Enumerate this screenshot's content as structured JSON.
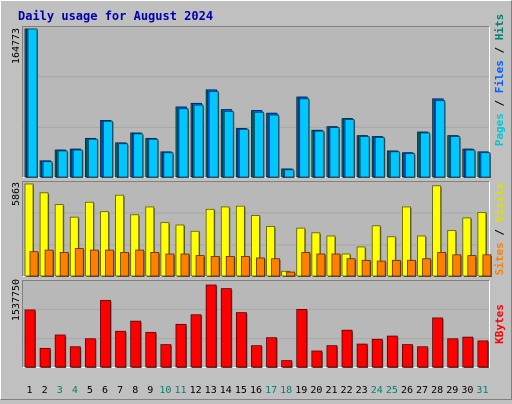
{
  "chart_data": [
    {
      "type": "bar",
      "title": "Daily usage for August 2024",
      "categories": [
        "1",
        "2",
        "3",
        "4",
        "5",
        "6",
        "7",
        "8",
        "9",
        "10",
        "11",
        "12",
        "13",
        "14",
        "15",
        "16",
        "17",
        "18",
        "19",
        "20",
        "21",
        "22",
        "23",
        "24",
        "25",
        "26",
        "27",
        "28",
        "29",
        "30",
        "31"
      ],
      "weekend_days": [
        "3",
        "4",
        "10",
        "11",
        "17",
        "18",
        "24",
        "25",
        "31"
      ],
      "ymax_label": "164773",
      "ylim": [
        0,
        164773
      ],
      "legend": [
        "Pages",
        "Files",
        "Hits"
      ],
      "legend_colors": [
        "#00c8d8",
        "#0060ff",
        "#00806f"
      ],
      "series": [
        {
          "name": "Hits",
          "color": "#00806f",
          "values": [
            164773,
            18000,
            30000,
            31000,
            43000,
            63000,
            38000,
            49000,
            43000,
            28000,
            78000,
            82000,
            97000,
            75000,
            54000,
            74000,
            71000,
            9000,
            89000,
            52000,
            56000,
            65000,
            46000,
            45000,
            29000,
            27000,
            50000,
            87000,
            46000,
            31000,
            28000
          ]
        },
        {
          "name": "Files",
          "color": "#0060ff",
          "values": [
            164773,
            18000,
            30000,
            31000,
            43000,
            63000,
            38000,
            49000,
            43000,
            28000,
            78000,
            82000,
            97000,
            75000,
            54000,
            74000,
            71000,
            9000,
            89000,
            52000,
            56000,
            65000,
            46000,
            45000,
            29000,
            27000,
            50000,
            87000,
            46000,
            31000,
            28000
          ]
        },
        {
          "name": "Pages",
          "color": "#00c8ff",
          "values": [
            164773,
            17000,
            29000,
            30000,
            42000,
            62000,
            37000,
            48000,
            42000,
            27000,
            76000,
            80000,
            95000,
            73000,
            53000,
            72000,
            69000,
            8000,
            87000,
            51000,
            55000,
            64000,
            45000,
            44000,
            28000,
            26000,
            49000,
            85000,
            45000,
            30000,
            27000
          ]
        }
      ]
    },
    {
      "type": "bar",
      "categories": [
        "1",
        "2",
        "3",
        "4",
        "5",
        "6",
        "7",
        "8",
        "9",
        "10",
        "11",
        "12",
        "13",
        "14",
        "15",
        "16",
        "17",
        "18",
        "19",
        "20",
        "21",
        "22",
        "23",
        "24",
        "25",
        "26",
        "27",
        "28",
        "29",
        "30",
        "31"
      ],
      "ymax_label": "5863",
      "ylim": [
        0,
        5863
      ],
      "legend": [
        "Sites",
        "Visits"
      ],
      "legend_colors": [
        "#ff8000",
        "#e0e000"
      ],
      "series": [
        {
          "name": "Visits",
          "color": "#ffff00",
          "values": [
            5863,
            5300,
            4550,
            3750,
            4700,
            4100,
            5150,
            3900,
            4400,
            3400,
            3250,
            2850,
            4250,
            4400,
            4450,
            3850,
            3150,
            300,
            3050,
            2750,
            2550,
            1400,
            1850,
            3200,
            2500,
            4400,
            2550,
            5750,
            2900,
            3700,
            4050
          ]
        },
        {
          "name": "Sites",
          "color": "#ff8000",
          "values": [
            1550,
            1650,
            1500,
            1750,
            1650,
            1650,
            1500,
            1650,
            1500,
            1400,
            1400,
            1300,
            1250,
            1250,
            1250,
            1150,
            1100,
            250,
            1500,
            1400,
            1400,
            1100,
            1000,
            950,
            1000,
            1000,
            1100,
            1500,
            1350,
            1300,
            1350
          ]
        }
      ]
    },
    {
      "type": "bar",
      "categories": [
        "1",
        "2",
        "3",
        "4",
        "5",
        "6",
        "7",
        "8",
        "9",
        "10",
        "11",
        "12",
        "13",
        "14",
        "15",
        "16",
        "17",
        "18",
        "19",
        "20",
        "21",
        "22",
        "23",
        "24",
        "25",
        "26",
        "27",
        "28",
        "29",
        "30",
        "31"
      ],
      "ymax_label": "1537750",
      "ylim": [
        0,
        1537750
      ],
      "legend": [
        "KBytes"
      ],
      "legend_colors": [
        "#ff0000"
      ],
      "series": [
        {
          "name": "KBytes",
          "color": "#ff0000",
          "values": [
            1070000,
            350000,
            600000,
            380000,
            530000,
            1250000,
            670000,
            860000,
            650000,
            420000,
            800000,
            980000,
            1537750,
            1470000,
            1020000,
            400000,
            550000,
            120000,
            1080000,
            300000,
            400000,
            690000,
            430000,
            520000,
            580000,
            420000,
            380000,
            920000,
            530000,
            560000,
            490000
          ]
        }
      ]
    }
  ]
}
